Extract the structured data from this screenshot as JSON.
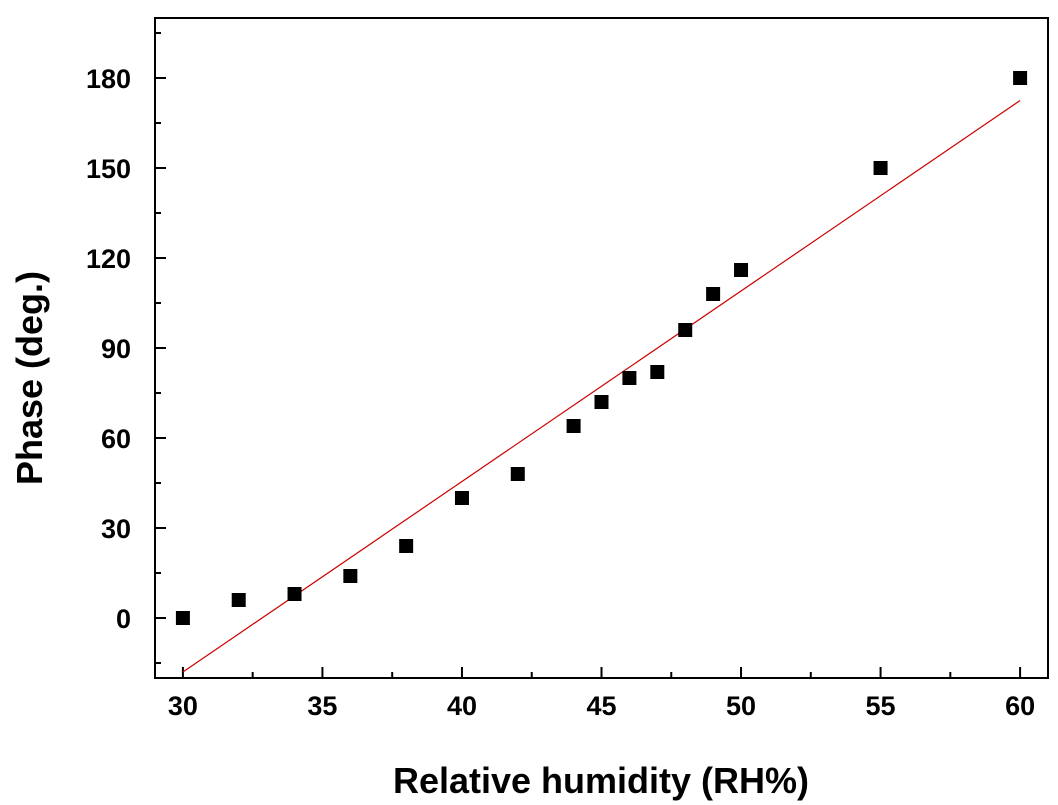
{
  "chart_data": {
    "type": "scatter",
    "title": "",
    "xlabel": "Relative humidity (RH%)",
    "ylabel": "Phase (deg.)",
    "xlim": [
      29,
      61
    ],
    "ylim": [
      -20,
      200
    ],
    "x_ticks": [
      30,
      35,
      40,
      45,
      50,
      55,
      60
    ],
    "y_ticks": [
      0,
      30,
      60,
      90,
      120,
      150,
      180
    ],
    "grid": false,
    "legend": "none",
    "series": [
      {
        "type": "scatter",
        "marker": "square",
        "color": "#000000",
        "x": [
          30,
          32,
          34,
          36,
          38,
          40,
          42,
          44,
          45,
          46,
          47,
          48,
          49,
          50,
          55,
          60
        ],
        "y": [
          0,
          6,
          8,
          14,
          24,
          40,
          48,
          64,
          72,
          80,
          82,
          96,
          108,
          116,
          150,
          180
        ]
      },
      {
        "type": "line",
        "color": "#cc0000",
        "x": [
          30,
          60
        ],
        "y": [
          -18,
          172.5
        ]
      }
    ]
  }
}
